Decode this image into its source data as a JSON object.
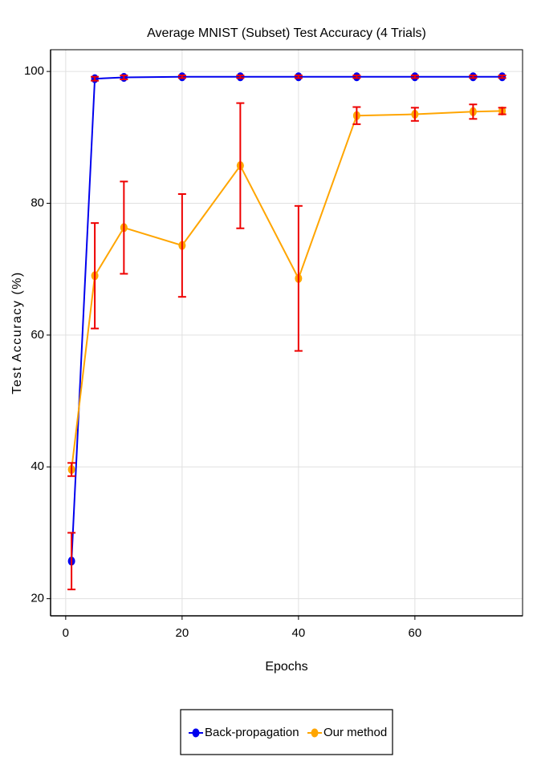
{
  "chart_data": {
    "type": "line",
    "title": "Average MNIST (Subset) Test Accuracy (4 Trials)",
    "x_label": "Epochs",
    "y_label": "Test Accuracy (%)",
    "x": [
      1,
      5,
      10,
      20,
      30,
      40,
      50,
      60,
      70,
      75
    ],
    "series": [
      {
        "name": "Back-propagation",
        "color": "#0000ee",
        "values": [
          25.7,
          98.9,
          99.1,
          99.2,
          99.2,
          99.2,
          99.2,
          99.2,
          99.2,
          99.2
        ],
        "errors": [
          4.3,
          0.3,
          0.3,
          0.2,
          0.2,
          0.2,
          0.2,
          0.2,
          0.2,
          0.2
        ]
      },
      {
        "name": "Our method",
        "color": "#ffa500",
        "values": [
          39.6,
          69.0,
          76.3,
          73.6,
          85.7,
          68.6,
          93.3,
          93.5,
          93.9,
          94.0
        ],
        "errors": [
          1.0,
          8.0,
          7.0,
          7.8,
          9.5,
          11.0,
          1.3,
          1.0,
          1.1,
          0.5
        ]
      }
    ],
    "error_color": "#ee0000",
    "xlim": [
      -2.6,
      78.5
    ],
    "xticks": [
      0,
      20,
      40,
      60
    ],
    "ylim": [
      17.4,
      103.3
    ],
    "yticks": [
      20,
      40,
      60,
      80,
      100
    ],
    "grid": true,
    "legend": "bottom"
  }
}
